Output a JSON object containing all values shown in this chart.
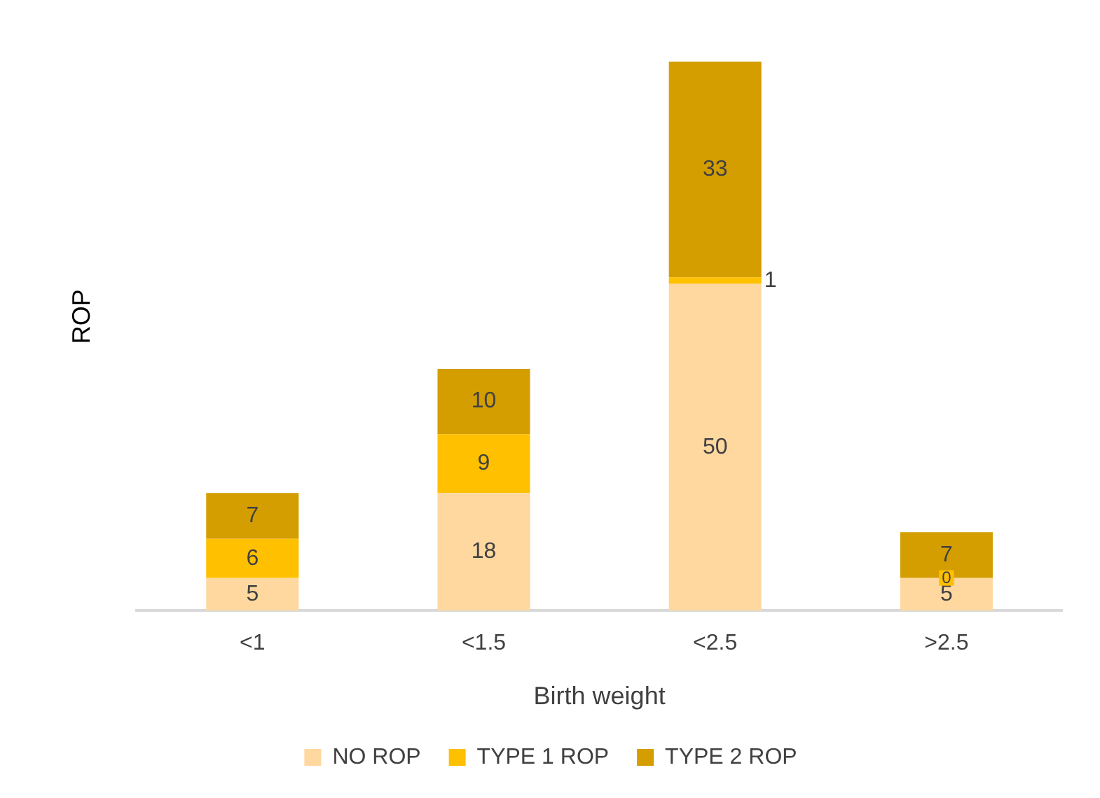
{
  "chart_data": {
    "type": "bar",
    "stacked": true,
    "data_labels": true,
    "xlabel": "Birth weight",
    "ylabel": "ROP",
    "legend": "bottom",
    "grid": false,
    "categories": [
      "<1",
      "<1.5",
      "<2.5",
      ">2.5"
    ],
    "series": [
      {
        "name": "NO ROP",
        "color": "#ffd8a0",
        "values": [
          5,
          18,
          50,
          5
        ]
      },
      {
        "name": "TYPE 1 ROP",
        "color": "#ffc000",
        "values": [
          6,
          9,
          1,
          0
        ]
      },
      {
        "name": "TYPE 2 ROP",
        "color": "#d49e00",
        "values": [
          7,
          10,
          33,
          7
        ]
      }
    ]
  }
}
